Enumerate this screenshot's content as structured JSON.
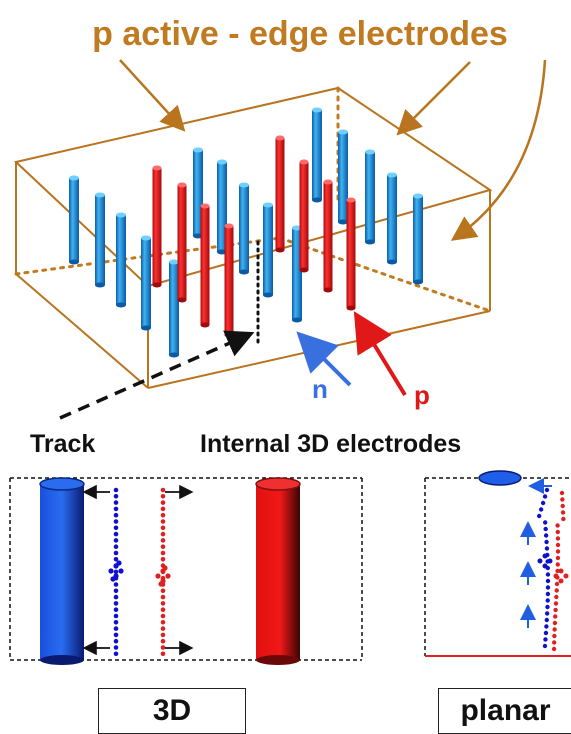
{
  "title": "p active - edge electrodes",
  "labels": {
    "n": "n",
    "p": "p",
    "track": "Track",
    "internal": "Internal 3D electrodes",
    "box_3d": "3D",
    "box_planar": "planar"
  },
  "colors": {
    "title": "#c07a20",
    "box_edge": "#b8741f",
    "n_electrode": "#1f8fd8",
    "p_electrode": "#e01818",
    "n_label": "#3a6fe0",
    "p_label": "#e01818",
    "dots_blue": "#1010cc",
    "dots_red": "#e02020",
    "track": "#111111"
  }
}
